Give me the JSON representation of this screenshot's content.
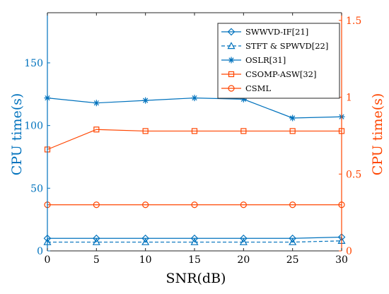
{
  "chart_data": {
    "type": "line",
    "title": "",
    "xlabel": "SNR(dB)",
    "ylabel_left": "CPU time(s)",
    "ylabel_right": "CPU time(s)",
    "x": [
      0,
      5,
      10,
      15,
      20,
      25,
      30
    ],
    "x_ticks": [
      "0",
      "5",
      "10",
      "15",
      "20",
      "25",
      "30"
    ],
    "xlim": [
      0,
      30
    ],
    "ylim_left": [
      0,
      190
    ],
    "y_ticks_left": [
      "0",
      "50",
      "100",
      "150"
    ],
    "ylim_right": [
      0,
      1.55
    ],
    "y_ticks_right": [
      "0",
      "0.5",
      "1",
      "1.5"
    ],
    "grid": false,
    "legend_position": "top-right",
    "colors": {
      "left_axis": "#0072BD",
      "right_axis": "#FF4500"
    },
    "series": [
      {
        "name": "SWWVD-IF[21]",
        "axis": "left",
        "color": "#0072BD",
        "marker": "diamond",
        "dash": false,
        "values": [
          10,
          10,
          10,
          10,
          10,
          10,
          11
        ]
      },
      {
        "name": "STFT & SPWVD[22]",
        "axis": "left",
        "color": "#0072BD",
        "marker": "triangle",
        "dash": true,
        "values": [
          7,
          7,
          7,
          7,
          7,
          7,
          8
        ]
      },
      {
        "name": "OSLR[31]",
        "axis": "left",
        "color": "#0072BD",
        "marker": "star",
        "dash": false,
        "values": [
          122,
          118,
          120,
          122,
          121,
          106,
          107
        ]
      },
      {
        "name": "CSOMP-ASW[32]",
        "axis": "right",
        "color": "#FF4500",
        "marker": "square",
        "dash": false,
        "values": [
          0.66,
          0.79,
          0.78,
          0.78,
          0.78,
          0.78,
          0.78
        ]
      },
      {
        "name": "CSML",
        "axis": "right",
        "color": "#FF4500",
        "marker": "circle",
        "dash": false,
        "values": [
          0.3,
          0.3,
          0.3,
          0.3,
          0.3,
          0.3,
          0.3
        ]
      }
    ]
  }
}
